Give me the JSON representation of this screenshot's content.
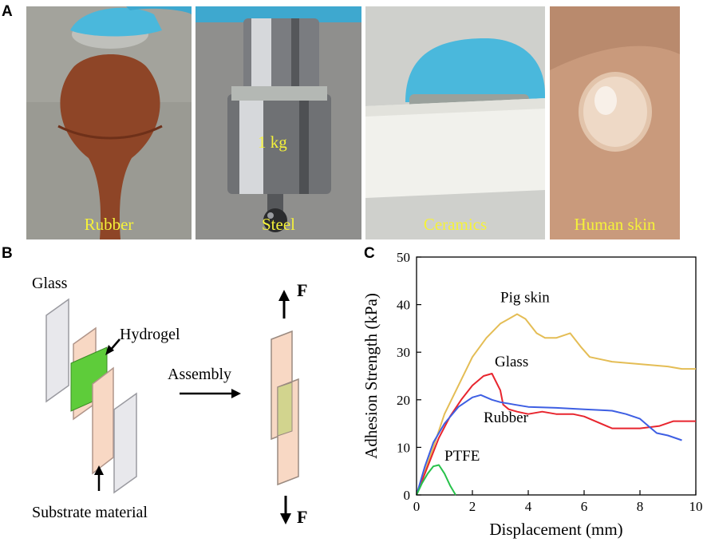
{
  "panel_labels": {
    "a": "A",
    "b": "B",
    "c": "C"
  },
  "photos": [
    {
      "caption": "Rubber",
      "bg": "#9a9a93",
      "object": "rubber-bulb"
    },
    {
      "caption": "Steel",
      "bg": "#8f8f8d",
      "object": "steel-weight",
      "weight_label": "1 kg"
    },
    {
      "caption": "Ceramics",
      "bg": "#cfd0cc",
      "object": "ceramic-disk"
    },
    {
      "caption": "Human skin",
      "bg": "#c99a7c",
      "object": "hydrogel-on-skin"
    }
  ],
  "schematic": {
    "glass_label": "Glass",
    "hydrogel_label": "Hydrogel",
    "assembly_label": "Assembly",
    "substrate_label": "Substrate material",
    "force_top": "F",
    "force_bottom": "F",
    "colors": {
      "glass": "#e8e8ec",
      "substrate": "#f8d8c4",
      "hydrogel": "#5ecc3a",
      "overlap": "#d2d48e"
    }
  },
  "chart_data": {
    "type": "line",
    "xlabel": "Displacement (mm)",
    "ylabel": "Adhesion Strength (kPa)",
    "xlim": [
      0,
      10
    ],
    "ylim": [
      0,
      50
    ],
    "xticks": [
      "0",
      "2",
      "4",
      "6",
      "8",
      "10"
    ],
    "yticks": [
      "0",
      "10",
      "20",
      "30",
      "40",
      "50"
    ],
    "grid": false,
    "series": [
      {
        "name": "Pig skin",
        "color": "#e4bd55",
        "x": [
          0,
          0.3,
          0.6,
          1.0,
          1.5,
          2.0,
          2.5,
          3.0,
          3.3,
          3.6,
          3.9,
          4.3,
          4.6,
          5.0,
          5.5,
          5.9,
          6.2,
          7.0,
          8.0,
          9.0,
          9.5,
          10.0
        ],
        "y": [
          0,
          5,
          10,
          17,
          23,
          29,
          33,
          36,
          37,
          38,
          37,
          34,
          33,
          33,
          34,
          31,
          29,
          28,
          27.5,
          27,
          26.5,
          26.5
        ]
      },
      {
        "name": "Glass",
        "color": "#e8252e",
        "x": [
          0,
          0.4,
          0.8,
          1.2,
          1.6,
          2.0,
          2.4,
          2.7,
          3.0,
          3.1,
          3.3,
          3.6,
          4.0,
          4.5,
          5.0,
          5.6,
          6.0,
          7.0,
          8.0,
          8.7,
          9.2,
          10.0
        ],
        "y": [
          0,
          6,
          12,
          16.5,
          20,
          23,
          25,
          25.5,
          22,
          19,
          18,
          17.5,
          17,
          17.5,
          17,
          17,
          16.5,
          14,
          14,
          14.5,
          15.5,
          15.5
        ]
      },
      {
        "name": "Rubber",
        "color": "#3e5fe3",
        "x": [
          0,
          0.3,
          0.6,
          1.0,
          1.5,
          2.0,
          2.3,
          2.7,
          3.0,
          3.5,
          4.0,
          5.0,
          6.0,
          7.0,
          7.5,
          8.0,
          8.3,
          8.6,
          9.0,
          9.5
        ],
        "y": [
          0,
          6,
          11,
          15,
          18.5,
          20.5,
          21,
          20,
          19.5,
          19,
          18.5,
          18.3,
          18,
          17.7,
          17,
          16,
          14.5,
          13,
          12.5,
          11.5
        ]
      },
      {
        "name": "PTFE",
        "color": "#27c24a",
        "x": [
          0,
          0.2,
          0.4,
          0.6,
          0.8,
          1.0,
          1.2,
          1.4
        ],
        "y": [
          0,
          2.5,
          4.5,
          6,
          6.3,
          4.5,
          2,
          0
        ]
      }
    ],
    "annotations": [
      {
        "text": "Pig skin",
        "x": 3.0,
        "y": 40.5
      },
      {
        "text": "Glass",
        "x": 2.8,
        "y": 27
      },
      {
        "text": "Rubber",
        "x": 2.4,
        "y": 15.3
      },
      {
        "text": "PTFE",
        "x": 1.0,
        "y": 7.2
      }
    ]
  }
}
